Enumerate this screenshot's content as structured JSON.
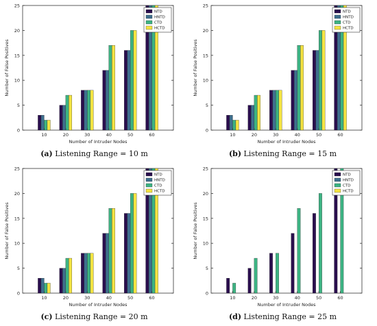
{
  "colors": {
    "NTD": "#2a0e4e",
    "HNTD": "#3e6f8e",
    "CTD": "#3db383",
    "HCTD": "#f4e342"
  },
  "chart_data": [
    {
      "type": "bar",
      "panel_label": "(a)",
      "caption": "Listening Range = 10 m",
      "xlabel": "Number of Intruder Nodes",
      "ylabel": "Number of False Positives",
      "categories": [
        "10",
        "20",
        "30",
        "40",
        "50",
        "60"
      ],
      "ylim": [
        0,
        25
      ],
      "yticks": [
        0,
        5,
        10,
        15,
        20,
        25
      ],
      "legend": "top-right",
      "series": [
        {
          "name": "NTD",
          "values": [
            3,
            5,
            8,
            12,
            16,
            25
          ]
        },
        {
          "name": "HNTD",
          "values": [
            3,
            5,
            8,
            12,
            16,
            25
          ]
        },
        {
          "name": "CTD",
          "values": [
            2,
            7,
            8,
            17,
            20,
            25
          ]
        },
        {
          "name": "HCTD",
          "values": [
            2,
            7,
            8,
            17,
            20,
            25
          ]
        }
      ]
    },
    {
      "type": "bar",
      "panel_label": "(b)",
      "caption": "Listening Range = 15 m",
      "xlabel": "Number of Intruder Nodes",
      "ylabel": "Number of False Positives",
      "categories": [
        "10",
        "20",
        "30",
        "40",
        "50",
        "60"
      ],
      "ylim": [
        0,
        25
      ],
      "yticks": [
        0,
        5,
        10,
        15,
        20,
        25
      ],
      "legend": "top-right",
      "series": [
        {
          "name": "NTD",
          "values": [
            3,
            5,
            8,
            12,
            16,
            25
          ]
        },
        {
          "name": "HNTD",
          "values": [
            3,
            5,
            8,
            12,
            16,
            25
          ]
        },
        {
          "name": "CTD",
          "values": [
            2,
            7,
            8,
            17,
            20,
            25
          ]
        },
        {
          "name": "HCTD",
          "values": [
            2,
            7,
            8,
            17,
            20,
            25
          ]
        }
      ]
    },
    {
      "type": "bar",
      "panel_label": "(c)",
      "caption": "Listening Range = 20 m",
      "xlabel": "Number of Intruder Nodes",
      "ylabel": "Number of False Positives",
      "categories": [
        "10",
        "20",
        "30",
        "40",
        "50",
        "60"
      ],
      "ylim": [
        0,
        25
      ],
      "yticks": [
        0,
        5,
        10,
        15,
        20,
        25
      ],
      "legend": "top-right",
      "series": [
        {
          "name": "NTD",
          "values": [
            3,
            5,
            8,
            12,
            16,
            25
          ]
        },
        {
          "name": "HNTD",
          "values": [
            3,
            5,
            8,
            12,
            16,
            25
          ]
        },
        {
          "name": "CTD",
          "values": [
            2,
            7,
            8,
            17,
            20,
            25
          ]
        },
        {
          "name": "HCTD",
          "values": [
            2,
            7,
            8,
            17,
            20,
            25
          ]
        }
      ]
    },
    {
      "type": "bar",
      "panel_label": "(d)",
      "caption": "Listening Range = 25 m",
      "xlabel": "Number of Intruder Nodes",
      "ylabel": "Number of False Positives",
      "categories": [
        "10",
        "20",
        "30",
        "40",
        "50",
        "60"
      ],
      "ylim": [
        0,
        25
      ],
      "yticks": [
        0,
        5,
        10,
        15,
        20,
        25
      ],
      "legend": "top-right",
      "series": [
        {
          "name": "NTD",
          "values": [
            3,
            5,
            8,
            12,
            16,
            25
          ]
        },
        {
          "name": "HNTD",
          "values": [
            0,
            0,
            0,
            0,
            0,
            0
          ]
        },
        {
          "name": "CTD",
          "values": [
            2,
            7,
            8,
            17,
            20,
            25
          ]
        },
        {
          "name": "HCTD",
          "values": [
            0,
            0,
            0,
            0,
            0,
            0
          ]
        }
      ]
    }
  ]
}
